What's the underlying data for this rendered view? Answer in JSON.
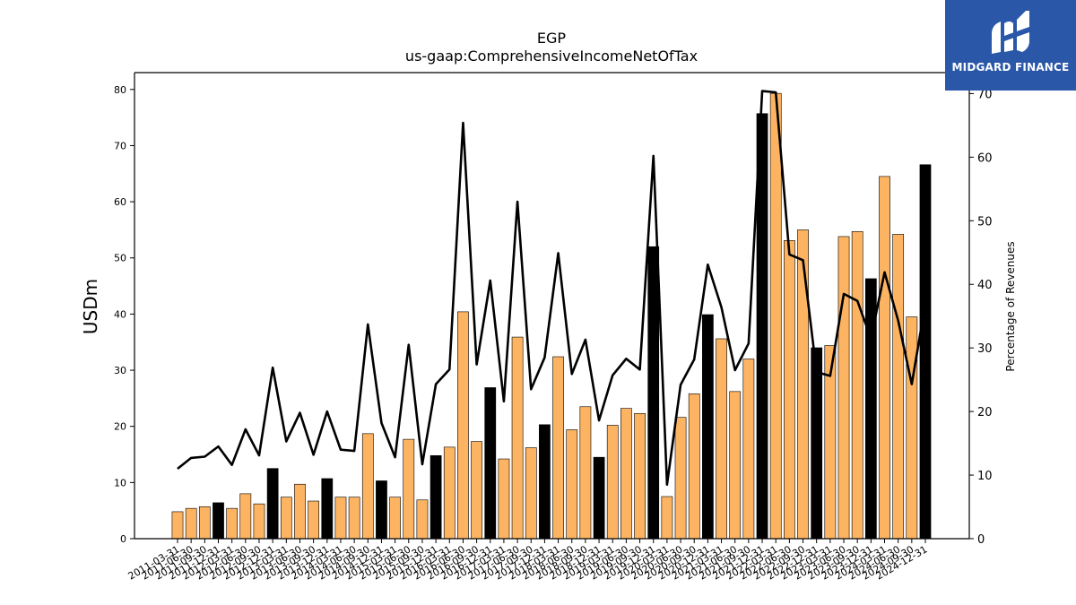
{
  "chart_data": {
    "type": "bar",
    "title": "EGP",
    "subtitle": "us-gaap:ComprehensiveIncomeNetOfTax",
    "ylabel": "USDm",
    "y2label": "Percentage of Revenues",
    "ylim": [
      0,
      83
    ],
    "y2lim": [
      0,
      73.3
    ],
    "yticks": [
      0,
      10,
      20,
      30,
      40,
      50,
      60,
      70,
      80
    ],
    "y2ticks": [
      0,
      10,
      20,
      30,
      40,
      50,
      60,
      70
    ],
    "bar_colors": {
      "quarter": "#fdb462",
      "year_end": "#000000"
    },
    "line_color": "#000000",
    "categories": [
      "2011-03-31",
      "2011-06-30",
      "2011-09-30",
      "2011-12-31",
      "2012-03-31",
      "2012-06-30",
      "2012-09-30",
      "2012-12-31",
      "2013-03-31",
      "2013-06-30",
      "2013-09-30",
      "2013-12-31",
      "2014-03-31",
      "2014-06-30",
      "2014-09-30",
      "2014-12-31",
      "2015-03-31",
      "2015-06-30",
      "2015-09-30",
      "2015-12-31",
      "2016-03-31",
      "2016-06-30",
      "2016-09-30",
      "2016-12-31",
      "2017-03-31",
      "2017-06-30",
      "2017-09-30",
      "2017-12-31",
      "2018-03-31",
      "2018-06-30",
      "2018-09-30",
      "2018-12-31",
      "2019-03-31",
      "2019-06-30",
      "2019-09-30",
      "2019-12-31",
      "2020-03-31",
      "2020-06-30",
      "2020-09-30",
      "2020-12-31",
      "2021-03-31",
      "2021-06-30",
      "2021-09-30",
      "2021-12-31",
      "2022-03-31",
      "2022-06-30",
      "2022-09-30",
      "2022-12-31",
      "2023-03-31",
      "2023-06-30",
      "2023-09-30",
      "2023-12-31",
      "2024-03-31",
      "2024-06-30",
      "2024-09-30",
      "2024-12-31"
    ],
    "x_tick_labels_shown": [
      "2011-03-31",
      "2011-06-30",
      "2011-09-30",
      "2011-12-31",
      "2012-03-31",
      "2012-06-30",
      "2012-09-30",
      "2012-12-31",
      "2013-03-31",
      "2013-06-30",
      "2013-09-30",
      "2013-12-31",
      "2014-03-31",
      "2014-06-30",
      "2014-09-30",
      "2014-12-31",
      "2015-03-31",
      "2015-06-30",
      "2015-09-30",
      "2015-12-31",
      "2016-03-31",
      "2016-06-30",
      "2016-09-30",
      "2016-12-31",
      "2017-03-31",
      "2017-06-30",
      "2017-09-30",
      "2017-12-31",
      "2018-03-31",
      "2018-06-30",
      "2018-09-30",
      "2018-12-31",
      "2019-03-31",
      "2019-06-30",
      "2019-09-30",
      "2019-12-31",
      "2020-03-31",
      "2020-06-30",
      "2020-09-30",
      "2020-12-31",
      "2021-03-31",
      "2021-06-30",
      "2021-09-30",
      "2021-12-31",
      "2022-03-31",
      "2022-06-30",
      "2022-09-30",
      "2022-12-31",
      "2023-03-31",
      "2023-06-30",
      "2023-09-30",
      "2023-12-31",
      "2024-03-31",
      "2024-06-30",
      "2024-09-30",
      "2024-12-31"
    ],
    "series": [
      {
        "name": "",
        "type": "bar",
        "axis": "left",
        "values": [
          4.8,
          5.4,
          5.7,
          6.4,
          5.4,
          8.0,
          6.2,
          12.5,
          7.4,
          9.7,
          6.7,
          10.7,
          7.4,
          7.4,
          18.7,
          10.3,
          7.4,
          17.7,
          6.9,
          14.8,
          16.3,
          40.4,
          17.3,
          26.9,
          14.2,
          35.9,
          16.2,
          20.3,
          32.4,
          19.4,
          23.5,
          14.5,
          20.2,
          23.2,
          22.3,
          52.0,
          7.5,
          21.6,
          25.8,
          39.9,
          35.6,
          26.2,
          32.0,
          75.7,
          79.3,
          53.1,
          55.0,
          34.0,
          34.4,
          53.8,
          54.7,
          46.3,
          64.5,
          54.2,
          39.5,
          66.6
        ],
        "year_end": [
          false,
          false,
          false,
          true,
          false,
          false,
          false,
          true,
          false,
          false,
          false,
          true,
          false,
          false,
          false,
          true,
          false,
          false,
          false,
          true,
          false,
          false,
          false,
          true,
          false,
          false,
          false,
          true,
          false,
          false,
          false,
          true,
          false,
          false,
          false,
          true,
          false,
          false,
          false,
          true,
          false,
          false,
          false,
          true,
          false,
          false,
          false,
          true,
          false,
          false,
          false,
          true,
          false,
          false,
          false,
          true
        ]
      },
      {
        "name": "",
        "type": "line",
        "axis": "right",
        "values": [
          11.0,
          12.7,
          12.9,
          14.5,
          11.6,
          17.2,
          13.1,
          26.9,
          15.3,
          19.8,
          13.2,
          20.0,
          14.0,
          13.8,
          33.7,
          18.2,
          12.8,
          30.5,
          11.7,
          24.3,
          26.6,
          65.4,
          27.4,
          40.6,
          21.6,
          53.0,
          23.5,
          28.5,
          44.9,
          25.9,
          31.3,
          18.6,
          25.7,
          28.3,
          26.6,
          60.2,
          8.5,
          24.2,
          28.2,
          43.1,
          36.4,
          26.5,
          30.7,
          70.4,
          70.2,
          44.7,
          43.8,
          26.2,
          25.6,
          38.5,
          37.4,
          31.5,
          41.9,
          34.3,
          24.3,
          37.0
        ]
      }
    ],
    "grid": false,
    "legend": "none"
  },
  "logo": {
    "text": "MIDGARD FINANCE",
    "color": "#2a57a8"
  }
}
